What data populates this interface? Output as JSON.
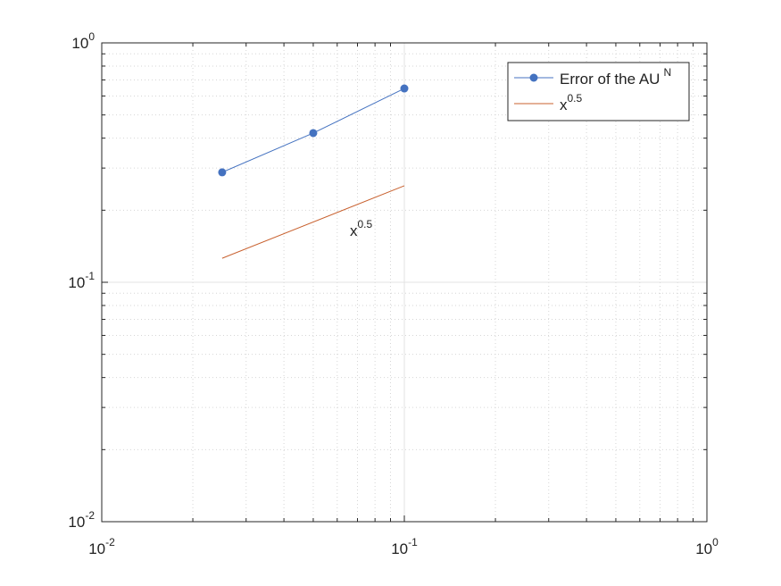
{
  "chart_data": {
    "type": "line",
    "x": [
      0.025,
      0.05,
      0.1
    ],
    "series": [
      {
        "name": "Error of the AU",
        "name_sup": "N",
        "color": "#4472c0",
        "marker": "circle",
        "x": [
          0.025,
          0.05,
          0.1
        ],
        "values": [
          0.288,
          0.42,
          0.645
        ]
      },
      {
        "name": "x",
        "name_sup": "0.5",
        "color": "#c8602e",
        "marker": "none",
        "x": [
          0.025,
          0.1
        ],
        "values": [
          0.126,
          0.253
        ]
      }
    ],
    "annotation": {
      "text": "x",
      "sup": "0.5"
    },
    "xscale": "log",
    "yscale": "log",
    "xlim": [
      0.01,
      1
    ],
    "ylim": [
      0.01,
      1
    ],
    "xticks": [
      {
        "value": 0.01,
        "label": "10",
        "exponent": "-2"
      },
      {
        "value": 0.1,
        "label": "10",
        "exponent": "-1"
      },
      {
        "value": 1,
        "label": "10",
        "exponent": "0"
      }
    ],
    "yticks": [
      {
        "value": 0.01,
        "label": "10",
        "exponent": "-2"
      },
      {
        "value": 0.1,
        "label": "10",
        "exponent": "-1"
      },
      {
        "value": 1,
        "label": "10",
        "exponent": "0"
      }
    ],
    "grid": true,
    "minor_grid": true,
    "legend": "northeast"
  }
}
